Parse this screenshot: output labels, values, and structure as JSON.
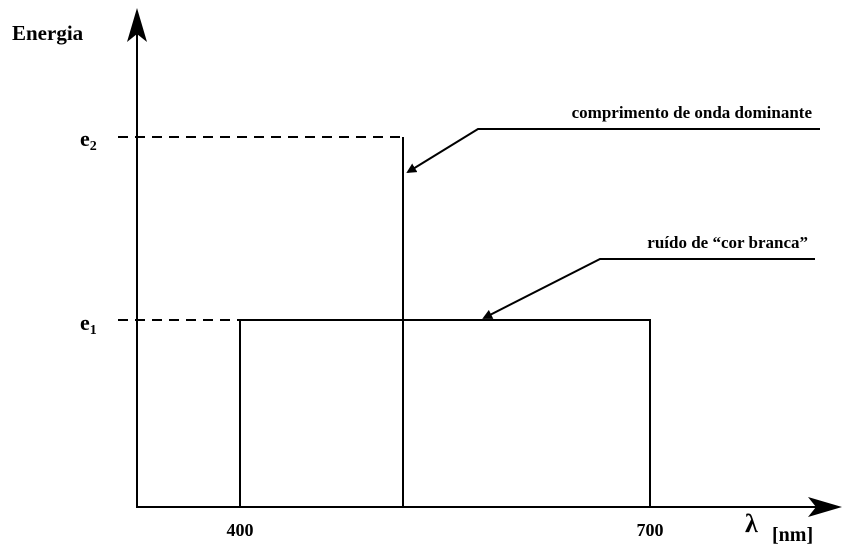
{
  "axes": {
    "y_label": "Energia",
    "x_symbol": "λ",
    "x_unit": "[nm]"
  },
  "levels": [
    {
      "base": "e",
      "sub": "2"
    },
    {
      "base": "e",
      "sub": "1"
    }
  ],
  "x_ticks": [
    400,
    700
  ],
  "annotations": [
    "comprimento de onda dominante",
    "ruído de “cor branca”"
  ]
}
